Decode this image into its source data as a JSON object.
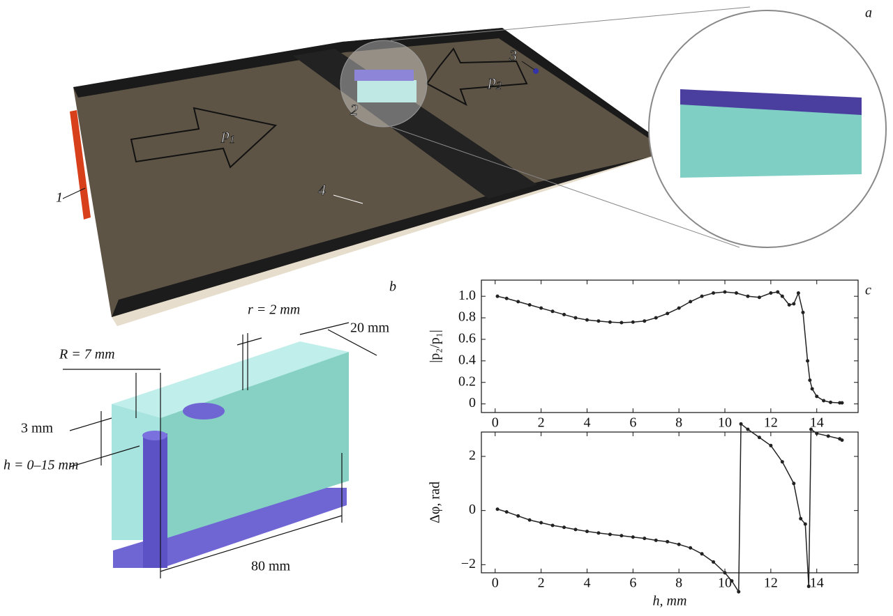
{
  "panel_a": {
    "label": "a",
    "markers": [
      "1",
      "2",
      "3",
      "4"
    ],
    "arrows": [
      {
        "base": "p",
        "sub": "1"
      },
      {
        "base": "p",
        "sub": "2"
      }
    ]
  },
  "panel_b": {
    "label": "b",
    "dimensions": [
      "r = 2 mm",
      "20 mm",
      "R = 7 mm",
      "3 mm",
      "h = 0–15 mm",
      "80 mm"
    ]
  },
  "panel_c": {
    "label": "c"
  },
  "chart_data": [
    {
      "type": "line",
      "ylabel": "|p₂/p₁|",
      "color": "#222222",
      "x": [
        0.1,
        0.5,
        1,
        1.5,
        2,
        2.5,
        3,
        3.5,
        4,
        4.5,
        5,
        5.5,
        6,
        6.5,
        7,
        7.5,
        8,
        8.5,
        9,
        9.5,
        10,
        10.5,
        11,
        11.5,
        12,
        12.3,
        12.5,
        12.8,
        13,
        13.2,
        13.4,
        13.6,
        13.7,
        13.8,
        14,
        14.3,
        14.6,
        15,
        15.1
      ],
      "values": [
        1.0,
        0.98,
        0.95,
        0.92,
        0.89,
        0.86,
        0.83,
        0.8,
        0.78,
        0.77,
        0.76,
        0.755,
        0.76,
        0.77,
        0.8,
        0.84,
        0.89,
        0.95,
        1.0,
        1.03,
        1.04,
        1.03,
        1.0,
        0.99,
        1.03,
        1.04,
        1.0,
        0.92,
        0.93,
        1.03,
        0.85,
        0.4,
        0.22,
        0.14,
        0.07,
        0.03,
        0.015,
        0.01,
        0.01
      ],
      "xlim": [
        -0.6,
        15.8
      ],
      "xticks": [
        0,
        2,
        4,
        6,
        8,
        10,
        12,
        14
      ],
      "ylim": [
        -0.08,
        1.15
      ],
      "yticks": [
        0,
        0.2,
        0.4,
        0.6,
        0.8,
        {
          "value": 1,
          "label": "1.0"
        }
      ]
    },
    {
      "type": "line",
      "ylabel": "Δφ, rad",
      "xlabel": "h, mm",
      "color": "#222222",
      "x": [
        0.1,
        0.5,
        1,
        1.5,
        2,
        2.5,
        3,
        3.5,
        4,
        4.5,
        5,
        5.5,
        6,
        6.5,
        7,
        7.5,
        8,
        8.5,
        9,
        9.5,
        10,
        10.3,
        10.6,
        10.7,
        11,
        11.5,
        12,
        12.5,
        13,
        13.3,
        13.5,
        13.65,
        13.75,
        14,
        14.5,
        15,
        15.1
      ],
      "values": [
        0.05,
        -0.05,
        -0.2,
        -0.35,
        -0.45,
        -0.55,
        -0.62,
        -0.7,
        -0.77,
        -0.83,
        -0.88,
        -0.93,
        -0.98,
        -1.03,
        -1.1,
        -1.15,
        -1.25,
        -1.38,
        -1.6,
        -1.9,
        -2.3,
        -2.6,
        -3.0,
        3.2,
        3.0,
        2.7,
        2.4,
        1.8,
        1.0,
        -0.3,
        -0.5,
        -2.8,
        3.0,
        2.85,
        2.75,
        2.65,
        2.6
      ],
      "xlim": [
        -0.6,
        15.8
      ],
      "xticks": [
        0,
        2,
        4,
        6,
        8,
        10,
        12,
        14
      ],
      "ylim": [
        -2.3,
        2.9
      ],
      "yticks": [
        {
          "value": -2,
          "label": "−2"
        },
        0,
        2
      ]
    }
  ]
}
